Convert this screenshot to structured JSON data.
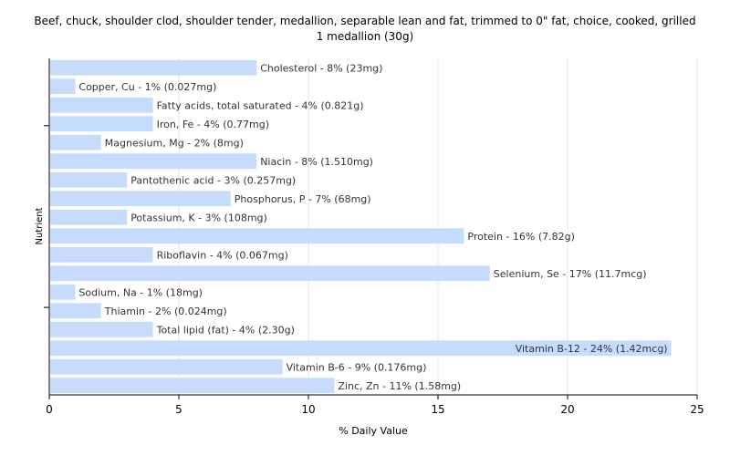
{
  "chart_data": {
    "type": "bar",
    "orientation": "horizontal",
    "title": "Beef, chuck, shoulder clod, shoulder tender, medallion, separable lean and fat, trimmed to 0\" fat, choice, cooked, grilled",
    "subtitle": "1 medallion (30g)",
    "xlabel": "% Daily Value",
    "ylabel": "Nutrient",
    "xlim": [
      0,
      25
    ],
    "xticks": [
      0,
      5,
      10,
      15,
      20,
      25
    ],
    "grid": true,
    "bar_color": "#c5dcff",
    "categories": [
      "Cholesterol",
      "Copper, Cu",
      "Fatty acids, total saturated",
      "Iron, Fe",
      "Magnesium, Mg",
      "Niacin",
      "Pantothenic acid",
      "Phosphorus, P",
      "Potassium, K",
      "Protein",
      "Riboflavin",
      "Selenium, Se",
      "Sodium, Na",
      "Thiamin",
      "Total lipid (fat)",
      "Vitamin B-12",
      "Vitamin B-6",
      "Zinc, Zn"
    ],
    "values": [
      8,
      1,
      4,
      4,
      2,
      8,
      3,
      7,
      3,
      16,
      4,
      17,
      1,
      2,
      4,
      24,
      9,
      11
    ],
    "labels": [
      "Cholesterol - 8% (23mg)",
      "Copper, Cu - 1% (0.027mg)",
      "Fatty acids, total saturated - 4% (0.821g)",
      "Iron, Fe - 4% (0.77mg)",
      "Magnesium, Mg - 2% (8mg)",
      "Niacin - 8% (1.510mg)",
      "Pantothenic acid - 3% (0.257mg)",
      "Phosphorus, P - 7% (68mg)",
      "Potassium, K - 3% (108mg)",
      "Protein - 16% (7.82g)",
      "Riboflavin - 4% (0.067mg)",
      "Selenium, Se - 17% (11.7mcg)",
      "Sodium, Na - 1% (18mg)",
      "Thiamin - 2% (0.024mg)",
      "Total lipid (fat) - 4% (2.30g)",
      "Vitamin B-12 - 24% (1.42mcg)",
      "Vitamin B-6 - 9% (0.176mg)",
      "Zinc, Zn - 11% (1.58mg)"
    ]
  }
}
